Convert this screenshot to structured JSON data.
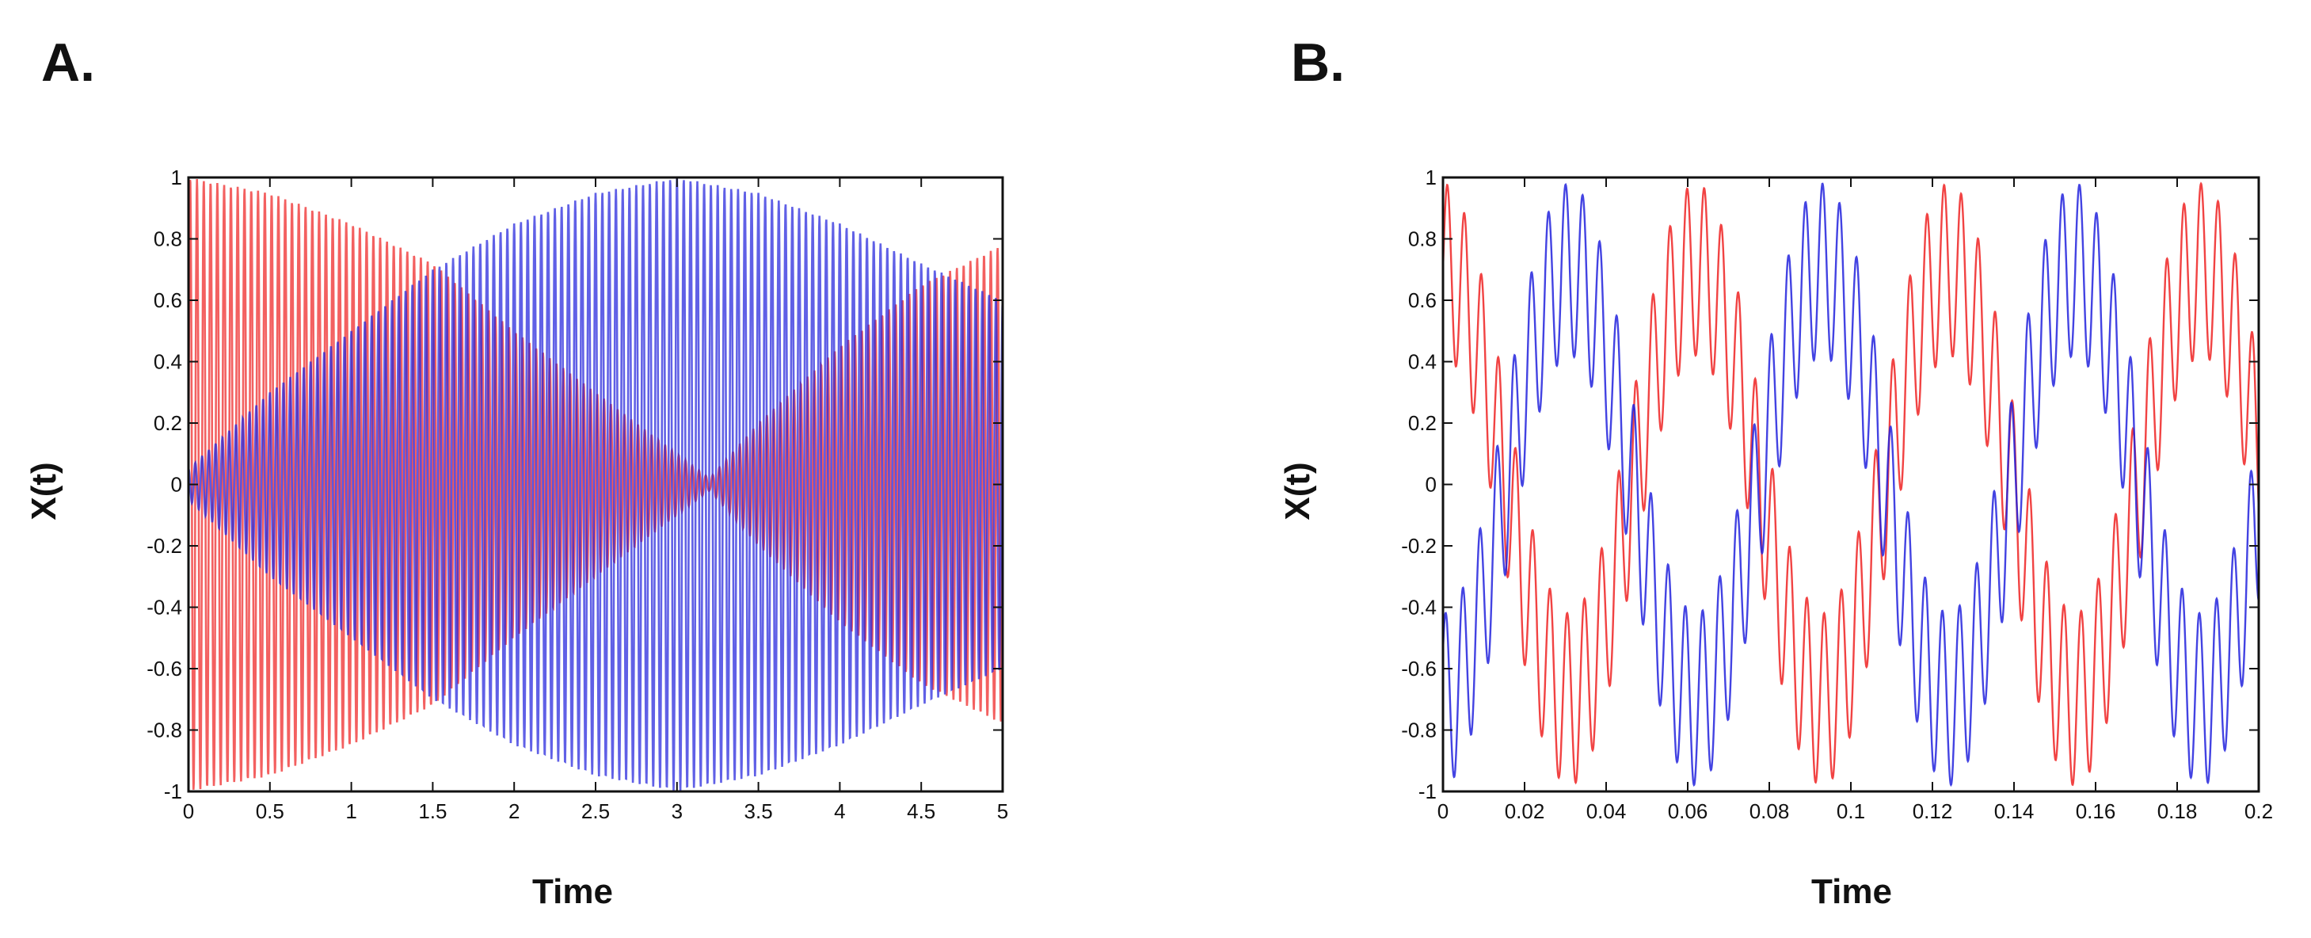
{
  "colors": {
    "series_a": "#ee2222",
    "series_b": "#2222dd",
    "axes": "#111111"
  },
  "chart_data": [
    {
      "panel": "A.",
      "type": "line",
      "xlabel": "Time",
      "ylabel": "X(t)",
      "xlim": [
        0,
        5
      ],
      "ylim": [
        -1,
        1
      ],
      "xticks": [
        "0",
        "0.5",
        "1",
        "1.5",
        "2",
        "2.5",
        "3",
        "3.5",
        "4",
        "4.5",
        "5"
      ],
      "yticks": [
        "1",
        "0.8",
        "0.6",
        "0.4",
        "0.2",
        "0",
        "-0.2",
        "-0.4",
        "-0.6",
        "-0.8",
        "-1"
      ],
      "grid": false,
      "series": [
        {
          "name": "red",
          "description": "fast oscillation with slowly varying envelope",
          "carrier_cycles_per_unit": 24,
          "envelope": [
            [
              0,
              1.0
            ],
            [
              0.5,
              0.95
            ],
            [
              1.0,
              0.85
            ],
            [
              1.5,
              0.72
            ],
            [
              2.0,
              0.5
            ],
            [
              2.5,
              0.3
            ],
            [
              3.0,
              0.1
            ],
            [
              3.2,
              0.02
            ],
            [
              3.5,
              0.2
            ],
            [
              4.0,
              0.45
            ],
            [
              4.5,
              0.65
            ],
            [
              5.0,
              0.78
            ]
          ]
        },
        {
          "name": "blue",
          "description": "fast oscillation with slowly varying envelope",
          "carrier_cycles_per_unit": 24,
          "envelope": [
            [
              0,
              0.05
            ],
            [
              0.5,
              0.3
            ],
            [
              1.0,
              0.5
            ],
            [
              1.5,
              0.7
            ],
            [
              2.0,
              0.85
            ],
            [
              2.5,
              0.95
            ],
            [
              3.0,
              1.0
            ],
            [
              3.5,
              0.95
            ],
            [
              4.0,
              0.85
            ],
            [
              4.5,
              0.72
            ],
            [
              5.0,
              0.6
            ]
          ]
        }
      ]
    },
    {
      "panel": "B.",
      "type": "line",
      "xlabel": "Time",
      "ylabel": "X(t)",
      "xlim": [
        0,
        0.2
      ],
      "ylim": [
        -1,
        1
      ],
      "xticks": [
        "0",
        "0.02",
        "0.04",
        "0.06",
        "0.08",
        "0.1",
        "0.12",
        "0.14",
        "0.16",
        "0.18",
        "0.2"
      ],
      "yticks": [
        "1",
        "0.8",
        "0.6",
        "0.4",
        "0.2",
        "0",
        "-0.2",
        "-0.4",
        "-0.6",
        "-0.8",
        "-1"
      ],
      "grid": false,
      "series": [
        {
          "name": "red",
          "description": "slow wave plus fast ripple",
          "slow_amplitude": 0.7,
          "slow_period": 0.062,
          "slow_phase_offset": 0.0,
          "ripple_amplitude": 0.28,
          "ripple_period": 0.0042
        },
        {
          "name": "blue",
          "description": "slow wave plus fast ripple, opposite phase",
          "slow_amplitude": 0.7,
          "slow_period": 0.062,
          "slow_phase_offset": 0.031,
          "ripple_amplitude": 0.28,
          "ripple_period": 0.0042
        }
      ]
    }
  ]
}
